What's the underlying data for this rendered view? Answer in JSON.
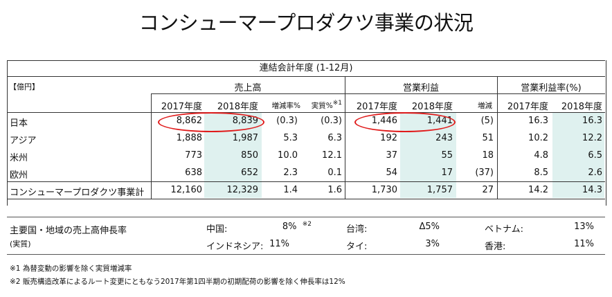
{
  "title": "コンシューマープロダクツ事業の状況",
  "table": {
    "top_header": "連結会計年度 (1-12月)",
    "unit_label": "【億円】",
    "group_headers": {
      "sales": "売上高",
      "op_profit": "営業利益",
      "op_margin": "営業利益率(%)"
    },
    "sub_headers": {
      "sales_2017": "2017年度",
      "sales_2018": "2018年度",
      "sales_change": "増減率%",
      "sales_real": "実質%",
      "sales_real_note": "※1",
      "op_2017": "2017年度",
      "op_2018": "2018年度",
      "op_change": "増減",
      "margin_2017": "2017年度",
      "margin_2018": "2018年度"
    },
    "rows": [
      {
        "region": "日本",
        "sales_2017": "8,862",
        "sales_2018": "8,839",
        "sales_change": "(0.3)",
        "sales_real": "(0.3)",
        "op_2017": "1,446",
        "op_2018": "1,441",
        "op_change": "(5)",
        "margin_2017": "16.3",
        "margin_2018": "16.3"
      },
      {
        "region": "アジア",
        "sales_2017": "1,888",
        "sales_2018": "1,987",
        "sales_change": "5.3",
        "sales_real": "6.3",
        "op_2017": "192",
        "op_2018": "243",
        "op_change": "51",
        "margin_2017": "10.2",
        "margin_2018": "12.2"
      },
      {
        "region": "米州",
        "sales_2017": "773",
        "sales_2018": "850",
        "sales_change": "10.0",
        "sales_real": "12.1",
        "op_2017": "37",
        "op_2018": "55",
        "op_change": "18",
        "margin_2017": "4.8",
        "margin_2018": "6.5"
      },
      {
        "region": "欧州",
        "sales_2017": "638",
        "sales_2018": "652",
        "sales_change": "2.3",
        "sales_real": "0.1",
        "op_2017": "54",
        "op_2018": "17",
        "op_change": "(37)",
        "margin_2017": "8.5",
        "margin_2018": "2.6"
      }
    ],
    "total": {
      "region": "コンシューマープロダクツ事業計",
      "sales_2017": "12,160",
      "sales_2018": "12,329",
      "sales_change": "1.4",
      "sales_real": "1.6",
      "op_2017": "1,730",
      "op_2018": "1,757",
      "op_change": "27",
      "margin_2017": "14.2",
      "margin_2018": "14.3"
    }
  },
  "growth": {
    "label": "主要国・地域の売上高伸長率",
    "sublabel": "(実質)",
    "items": [
      {
        "name": "中国:",
        "value": "8%",
        "note": "※2"
      },
      {
        "name": "台湾:",
        "value": "Δ5%"
      },
      {
        "name": "ベトナム:",
        "value": "13%"
      },
      {
        "name": "インドネシア:",
        "value": "11%"
      },
      {
        "name": "タイ:",
        "value": "3%"
      },
      {
        "name": "香港:",
        "value": "11%"
      }
    ]
  },
  "notes": [
    "※1 為替変動の影響を除く実質増減率",
    "※2 販売構造改革によるルート変更にともなう2017年第1四半期の初期配荷の影響を除く伸長率は12%"
  ],
  "colors": {
    "shade": "#dff1ef",
    "highlight_oval": "#e01b1b"
  }
}
